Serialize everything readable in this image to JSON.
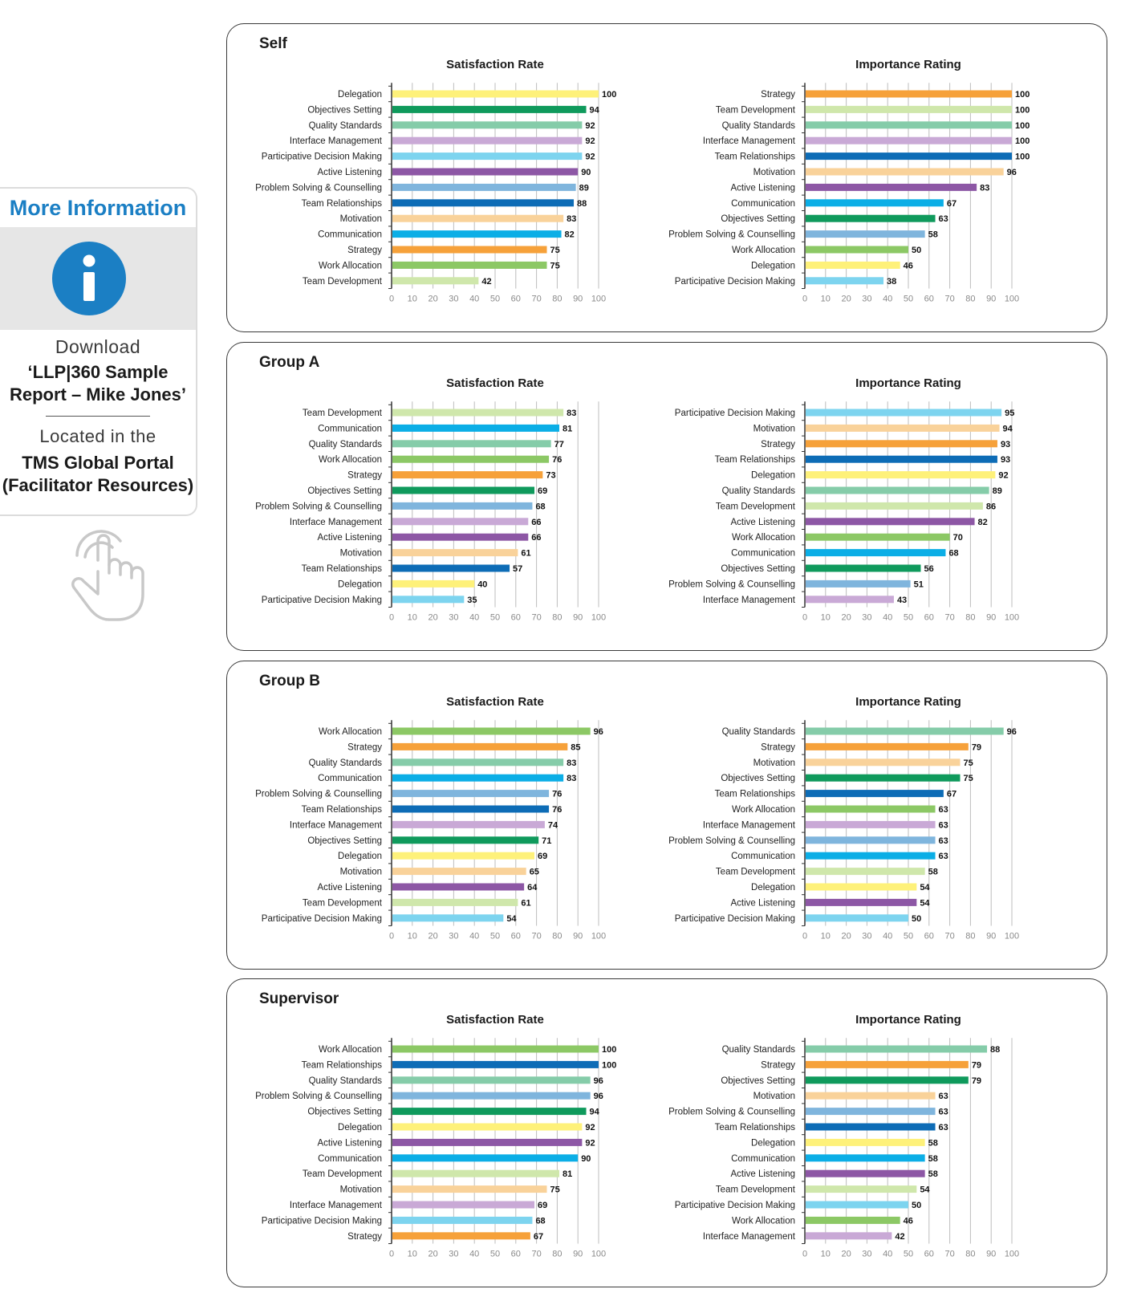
{
  "sidebar": {
    "title": "More Information",
    "download": "Download",
    "report": "‘LLP|360 Sample Report – Mike Jones’",
    "located": "Located in the",
    "portal": "TMS Global Portal (Facilitator Resources)",
    "icons": [
      "info-icon",
      "touch-hand-icon"
    ],
    "accent": "#1b7fc4"
  },
  "colors": {
    "Delegation": "#fef17a",
    "Objectives Setting": "#0f9a5c",
    "Quality Standards": "#85cca9",
    "Interface Management": "#c9a9d6",
    "Participative Decision Making": "#7dd4ef",
    "Active Listening": "#8d57a5",
    "Problem Solving & Counselling": "#7fb5dd",
    "Team Relationships": "#0d6cb6",
    "Motivation": "#f9d29a",
    "Communication": "#0baee6",
    "Strategy": "#f6a13a",
    "Work Allocation": "#8cc865",
    "Team Development": "#cfe7ab"
  },
  "chart_data": [
    {
      "panel": "Self",
      "type": "bar",
      "orientation": "horizontal",
      "xlim": [
        0,
        100
      ],
      "xticks": [
        0,
        10,
        20,
        30,
        40,
        50,
        60,
        70,
        80,
        90,
        100
      ],
      "charts": [
        {
          "title": "Satisfaction Rate",
          "categories": [
            "Delegation",
            "Objectives Setting",
            "Quality Standards",
            "Interface Management",
            "Participative Decision Making",
            "Active Listening",
            "Problem Solving & Counselling",
            "Team Relationships",
            "Motivation",
            "Communication",
            "Strategy",
            "Work Allocation",
            "Team Development"
          ],
          "values": [
            100,
            94,
            92,
            92,
            92,
            90,
            89,
            88,
            83,
            82,
            75,
            75,
            42
          ]
        },
        {
          "title": "Importance Rating",
          "categories": [
            "Strategy",
            "Team Development",
            "Quality Standards",
            "Interface Management",
            "Team Relationships",
            "Motivation",
            "Active Listening",
            "Communication",
            "Objectives Setting",
            "Problem Solving & Counselling",
            "Work Allocation",
            "Delegation",
            "Participative Decision Making"
          ],
          "values": [
            100,
            100,
            100,
            100,
            100,
            96,
            83,
            67,
            63,
            58,
            50,
            46,
            38
          ]
        }
      ]
    },
    {
      "panel": "Group A",
      "type": "bar",
      "orientation": "horizontal",
      "xlim": [
        0,
        100
      ],
      "xticks": [
        0,
        10,
        20,
        30,
        40,
        50,
        60,
        70,
        80,
        90,
        100
      ],
      "charts": [
        {
          "title": "Satisfaction Rate",
          "categories": [
            "Team Development",
            "Communication",
            "Quality Standards",
            "Work Allocation",
            "Strategy",
            "Objectives Setting",
            "Problem Solving & Counselling",
            "Interface Management",
            "Active Listening",
            "Motivation",
            "Team Relationships",
            "Delegation",
            "Participative Decision Making"
          ],
          "values": [
            83,
            81,
            77,
            76,
            73,
            69,
            68,
            66,
            66,
            61,
            57,
            40,
            35
          ]
        },
        {
          "title": "Importance Rating",
          "categories": [
            "Participative Decision Making",
            "Motivation",
            "Strategy",
            "Team Relationships",
            "Delegation",
            "Quality Standards",
            "Team Development",
            "Active Listening",
            "Work Allocation",
            "Communication",
            "Objectives Setting",
            "Problem Solving & Counselling",
            "Interface Management"
          ],
          "values": [
            95,
            94,
            93,
            93,
            92,
            89,
            86,
            82,
            70,
            68,
            56,
            51,
            43
          ]
        }
      ]
    },
    {
      "panel": "Group B",
      "type": "bar",
      "orientation": "horizontal",
      "xlim": [
        0,
        100
      ],
      "xticks": [
        0,
        10,
        20,
        30,
        40,
        50,
        60,
        70,
        80,
        90,
        100
      ],
      "charts": [
        {
          "title": "Satisfaction Rate",
          "categories": [
            "Work Allocation",
            "Strategy",
            "Quality Standards",
            "Communication",
            "Problem Solving & Counselling",
            "Team Relationships",
            "Interface Management",
            "Objectives Setting",
            "Delegation",
            "Motivation",
            "Active Listening",
            "Team Development",
            "Participative Decision Making"
          ],
          "values": [
            96,
            85,
            83,
            83,
            76,
            76,
            74,
            71,
            69,
            65,
            64,
            61,
            54
          ]
        },
        {
          "title": "Importance Rating",
          "categories": [
            "Quality Standards",
            "Strategy",
            "Motivation",
            "Objectives Setting",
            "Team Relationships",
            "Work Allocation",
            "Interface Management",
            "Problem Solving & Counselling",
            "Communication",
            "Team Development",
            "Delegation",
            "Active Listening",
            "Participative Decision Making"
          ],
          "values": [
            96,
            79,
            75,
            75,
            67,
            63,
            63,
            63,
            63,
            58,
            54,
            54,
            50
          ]
        }
      ]
    },
    {
      "panel": "Supervisor",
      "type": "bar",
      "orientation": "horizontal",
      "xlim": [
        0,
        100
      ],
      "xticks": [
        0,
        10,
        20,
        30,
        40,
        50,
        60,
        70,
        80,
        90,
        100
      ],
      "charts": [
        {
          "title": "Satisfaction Rate",
          "categories": [
            "Work Allocation",
            "Team Relationships",
            "Quality Standards",
            "Problem Solving & Counselling",
            "Objectives Setting",
            "Delegation",
            "Active Listening",
            "Communication",
            "Team Development",
            "Motivation",
            "Interface Management",
            "Participative Decision Making",
            "Strategy"
          ],
          "values": [
            100,
            100,
            96,
            96,
            94,
            92,
            92,
            90,
            81,
            75,
            69,
            68,
            67
          ]
        },
        {
          "title": "Importance Rating",
          "categories": [
            "Quality Standards",
            "Strategy",
            "Objectives Setting",
            "Motivation",
            "Problem Solving & Counselling",
            "Team Relationships",
            "Delegation",
            "Communication",
            "Active Listening",
            "Team Development",
            "Participative Decision Making",
            "Work Allocation",
            "Interface Management"
          ],
          "values": [
            88,
            79,
            79,
            63,
            63,
            63,
            58,
            58,
            58,
            54,
            50,
            46,
            42
          ]
        }
      ]
    }
  ]
}
